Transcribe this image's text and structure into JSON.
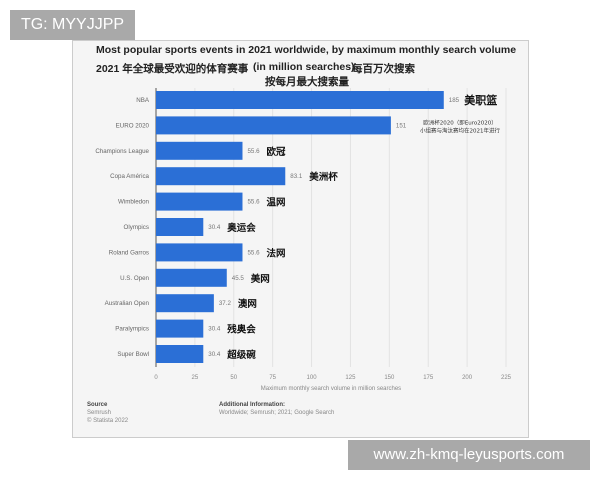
{
  "watermarks": {
    "top_left": "TG: MYYJJPP",
    "bottom_right": "www.zh-kmq-leyusports.com"
  },
  "chart_data": {
    "type": "bar",
    "orientation": "horizontal",
    "title": "Most popular sports events in 2021 worldwide, by maximum monthly search volume",
    "subtitle_zh": "2021 年全球最受欢迎的体育赛事",
    "subtitle_unit": "(in million searches)",
    "subtitle_zh2": "每百万次搜索",
    "subtitle_zh3": "按每月最大搜索量",
    "categories": [
      "NBA",
      "EURO 2020",
      "Champions League",
      "Copa América",
      "Wimbledon",
      "Olympics",
      "Roland Garros",
      "U.S. Open",
      "Australian Open",
      "Paralympics",
      "Super Bowl"
    ],
    "values": [
      185,
      151,
      55.6,
      83.1,
      55.6,
      30.4,
      55.6,
      45.5,
      37.2,
      30.4,
      30.4
    ],
    "value_labels": [
      "185",
      "151",
      "55.6",
      "83.1",
      "55.6",
      "30.4",
      "55.6",
      "45.5",
      "37.2",
      "30.4",
      "30.4"
    ],
    "annotations": [
      "美职篮",
      "欧洲杯2020（即Euro2020）\n小组赛与淘汰赛均在2021年进行",
      "欧冠",
      "美洲杯",
      "温网",
      "奥运会",
      "法网",
      "美网",
      "澳网",
      "残奥会",
      "超级碗"
    ],
    "xlabel": "Maximum monthly search volume in million searches",
    "xlim": [
      0,
      225
    ],
    "xticks": [
      "0",
      "25",
      "50",
      "75",
      "100",
      "125",
      "150",
      "175",
      "200",
      "225"
    ],
    "grid": true,
    "bar_color": "#2b6fd6"
  },
  "footer": {
    "source_label": "Source",
    "source_lines": [
      "Semrush",
      "© Statista 2022"
    ],
    "info_label": "Additional Information:",
    "info_text": "Worldwide; Semrush; 2021; Google Search"
  }
}
